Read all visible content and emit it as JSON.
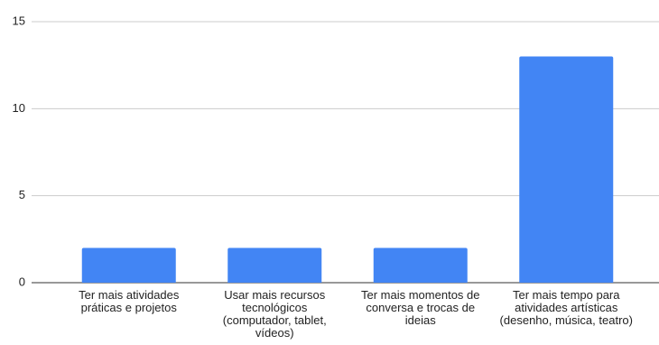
{
  "chart_data": {
    "type": "bar",
    "categories": [
      "Ter mais atividades práticas e projetos",
      "Usar mais recursos tecnológicos (computador, tablet, vídeos)",
      "Ter mais momentos de conversa e trocas de ideias",
      "Ter mais tempo para atividades artísticas (desenho, música, teatro)"
    ],
    "values": [
      2,
      2,
      2,
      13
    ],
    "color": "#4285f4",
    "ylim": [
      0,
      15
    ],
    "yticks": [
      0,
      5,
      10,
      15
    ],
    "grid": true
  }
}
